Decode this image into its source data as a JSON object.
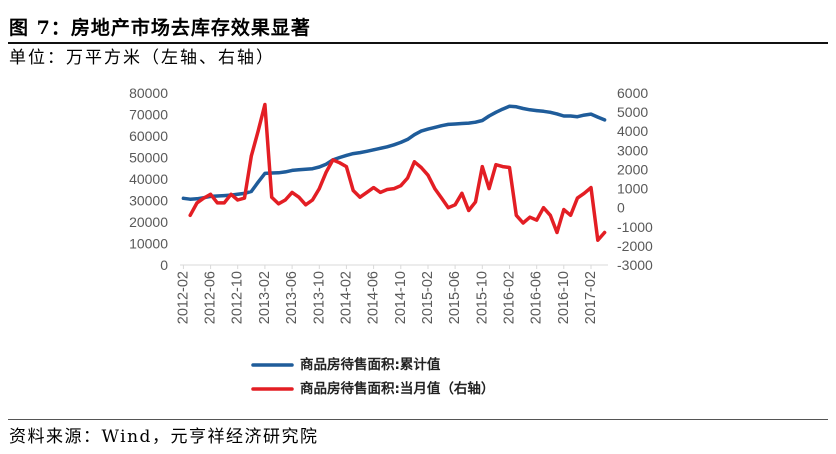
{
  "figure": {
    "title": "图 7：房地产市场去库存效果显著",
    "unit": "单位：万平方米（左轴、右轴）",
    "source": "资料来源：Wind，元亨祥经济研究院"
  },
  "chart_data": {
    "type": "line",
    "dual_axis": true,
    "grid": false,
    "legend_position": "bottom",
    "x_ticks": [
      "2012-02",
      "2012-06",
      "2012-10",
      "2013-02",
      "2013-06",
      "2013-10",
      "2014-02",
      "2014-06",
      "2014-10",
      "2015-02",
      "2015-06",
      "2015-10",
      "2016-02",
      "2016-06",
      "2016-10",
      "2017-02"
    ],
    "x_tick_step": 4,
    "y_left": {
      "range": [
        0,
        80000
      ],
      "ticks": [
        0,
        10000,
        20000,
        30000,
        40000,
        50000,
        60000,
        70000,
        80000
      ]
    },
    "y_right": {
      "range": [
        -3000,
        6000
      ],
      "ticks": [
        -3000,
        -2000,
        -1000,
        0,
        1000,
        2000,
        3000,
        4000,
        5000,
        6000
      ]
    },
    "series": [
      {
        "name": "商品房待售面积:累计值",
        "on_right_axis": false,
        "color": "#1F5C9A",
        "values": [
          31000,
          30600,
          30800,
          31300,
          31900,
          32100,
          32300,
          32500,
          32900,
          33300,
          34200,
          38500,
          42600,
          42800,
          42900,
          43300,
          44000,
          44300,
          44500,
          44800,
          45600,
          46900,
          48900,
          50000,
          51000,
          51800,
          52300,
          52900,
          53600,
          54300,
          55000,
          55900,
          57000,
          58400,
          60600,
          62300,
          63200,
          64000,
          64800,
          65400,
          65600,
          65800,
          66000,
          66400,
          67200,
          69300,
          71000,
          72500,
          73800,
          73600,
          72800,
          72200,
          71800,
          71500,
          71000,
          70300,
          69300,
          69300,
          69000,
          69700,
          70200,
          68800,
          67500
        ]
      },
      {
        "name": "商品房待售面积:当月值（右轴）",
        "on_right_axis": true,
        "color": "#E31E24",
        "values": [
          null,
          -400,
          250,
          500,
          700,
          250,
          250,
          700,
          400,
          500,
          2700,
          4000,
          5400,
          550,
          200,
          400,
          800,
          550,
          150,
          400,
          1000,
          1850,
          2500,
          2350,
          2150,
          900,
          550,
          800,
          1050,
          800,
          950,
          1000,
          1150,
          1550,
          2400,
          2100,
          1700,
          1000,
          500,
          0,
          150,
          750,
          -150,
          300,
          2150,
          1000,
          2250,
          2150,
          2100,
          -400,
          -800,
          -500,
          -650,
          0,
          -400,
          -1300,
          -100,
          -400,
          500,
          750,
          1050,
          -1700,
          -1300
        ]
      }
    ]
  }
}
